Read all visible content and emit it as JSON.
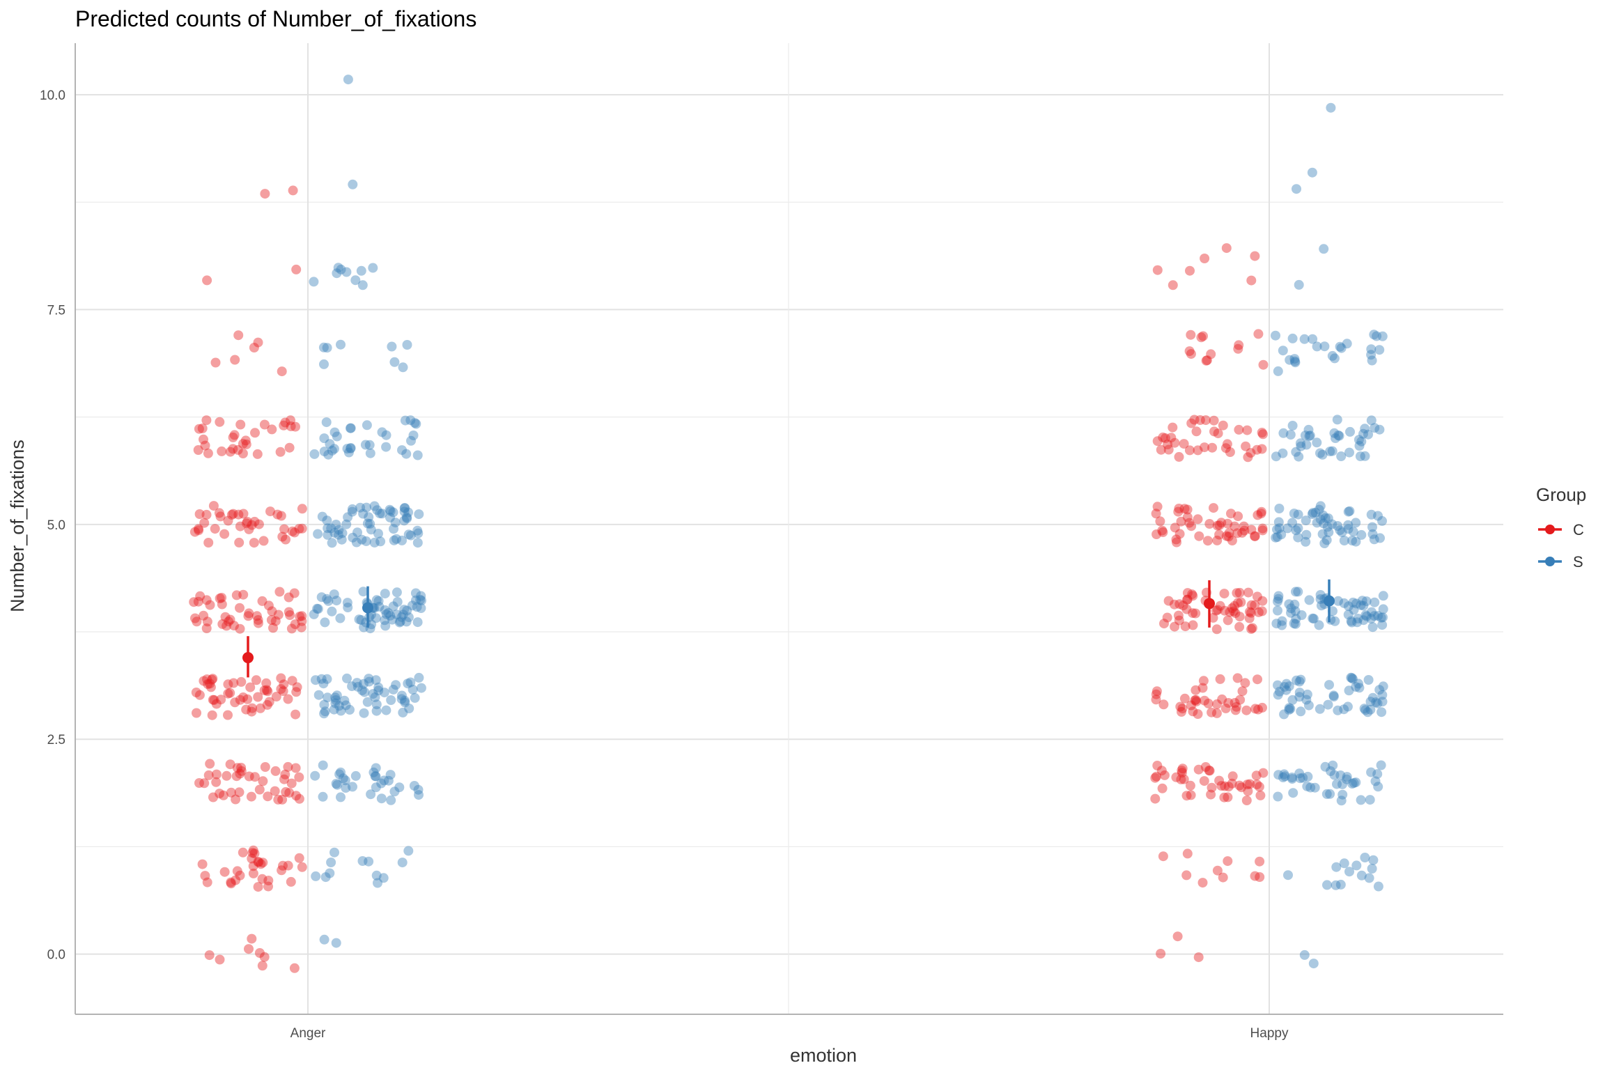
{
  "chart_data": {
    "type": "scatter",
    "title": "Predicted counts of Number_of_fixations",
    "xlabel": "emotion",
    "ylabel": "Number_of_fixations",
    "categories": [
      "Anger",
      "Happy"
    ],
    "y_ticks": [
      "0.0",
      "2.5",
      "5.0",
      "7.5",
      "10.0"
    ],
    "ylim": [
      -0.7,
      10.6
    ],
    "grid": true,
    "legend": {
      "title": "Group",
      "position": "right"
    },
    "series": [
      {
        "name": "C",
        "color": "#e41a1c",
        "predicted": [
          {
            "category": "Anger",
            "value": 3.45,
            "ci": [
              3.22,
              3.7
            ]
          },
          {
            "category": "Happy",
            "value": 4.08,
            "ci": [
              3.8,
              4.35
            ]
          }
        ],
        "observed_counts": {
          "Anger": [
            [
              0,
              8
            ],
            [
              1,
              30
            ],
            [
              2,
              40
            ],
            [
              3,
              48
            ],
            [
              4,
              46
            ],
            [
              5,
              38
            ],
            [
              6,
              30
            ],
            [
              7,
              6
            ],
            [
              8,
              2
            ],
            [
              9,
              2
            ]
          ],
          "Happy": [
            [
              0,
              3
            ],
            [
              1,
              10
            ],
            [
              2,
              42
            ],
            [
              3,
              38
            ],
            [
              4,
              52
            ],
            [
              5,
              48
            ],
            [
              6,
              36
            ],
            [
              7,
              12
            ],
            [
              8,
              7
            ]
          ]
        }
      },
      {
        "name": "S",
        "color": "#377eb8",
        "predicted": [
          {
            "category": "Anger",
            "value": 4.03,
            "ci": [
              3.8,
              4.28
            ]
          },
          {
            "category": "Happy",
            "value": 4.11,
            "ci": [
              3.86,
              4.36
            ]
          }
        ],
        "observed_counts": {
          "Anger": [
            [
              0,
              2
            ],
            [
              1,
              12
            ],
            [
              2,
              30
            ],
            [
              3,
              54
            ],
            [
              4,
              60
            ],
            [
              5,
              58
            ],
            [
              6,
              32
            ],
            [
              7,
              8
            ],
            [
              8,
              9
            ],
            [
              9,
              1
            ],
            [
              10,
              1
            ]
          ],
          "Happy": [
            [
              0,
              2
            ],
            [
              1,
              14
            ],
            [
              2,
              38
            ],
            [
              3,
              50
            ],
            [
              4,
              60
            ],
            [
              5,
              54
            ],
            [
              6,
              38
            ],
            [
              7,
              24
            ],
            [
              8,
              2
            ],
            [
              9,
              2
            ],
            [
              10,
              1
            ]
          ]
        }
      }
    ]
  }
}
